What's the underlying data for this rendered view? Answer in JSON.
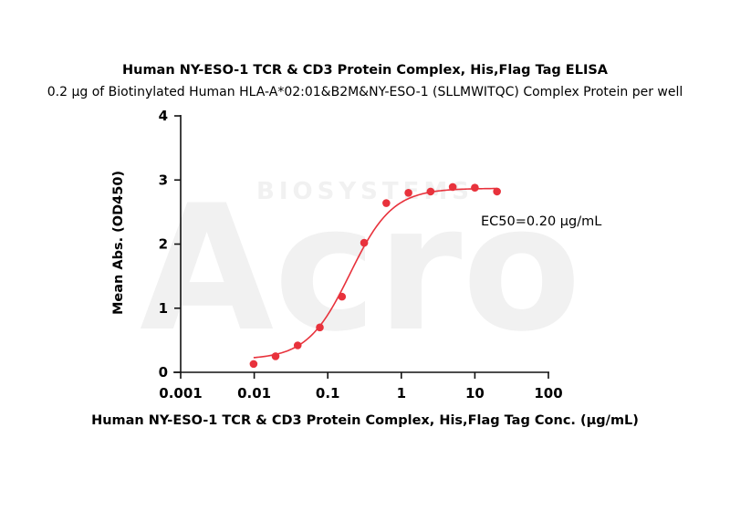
{
  "chart_data": {
    "type": "scatter",
    "title": "Human NY-ESO-1 TCR & CD3 Protein Complex, His,Flag Tag ELISA",
    "subtitle": "0.2 µg of Biotinylated Human HLA-A*02:01&B2M&NY-ESO-1 (SLLMWITQC) Complex Protein per well",
    "xlabel": "Human NY-ESO-1 TCR & CD3 Protein Complex, His,Flag Tag Conc. (µg/mL)",
    "ylabel": "Mean Abs. (OD450)",
    "x_scale": "log",
    "xlim": [
      0.001,
      100
    ],
    "ylim": [
      0,
      4
    ],
    "x_ticks": [
      0.001,
      0.01,
      0.1,
      1,
      10,
      100
    ],
    "x_tick_labels": [
      "0.001",
      "0.01",
      "0.1",
      "1",
      "10",
      "100"
    ],
    "y_ticks": [
      0,
      1,
      2,
      3,
      4
    ],
    "y_tick_labels": [
      "0",
      "1",
      "2",
      "3",
      "4"
    ],
    "grid": false,
    "series": [
      {
        "color": "#e8323c",
        "x": [
          0.0098,
          0.0195,
          0.039,
          0.078,
          0.156,
          0.3125,
          0.625,
          1.25,
          2.5,
          5,
          10,
          20
        ],
        "y": [
          0.13,
          0.25,
          0.42,
          0.7,
          1.18,
          2.02,
          2.64,
          2.8,
          2.82,
          2.89,
          2.88,
          2.82
        ]
      }
    ],
    "fit_curve": {
      "bottom": 0.2,
      "top": 2.87,
      "ec50": 0.2,
      "hill": 1.5,
      "color": "#e8323c"
    },
    "annotation": "EC50=0.20 µg/mL",
    "watermark": {
      "logo_text": "Acro",
      "sub_text": "BIOSYSTEMS"
    }
  }
}
